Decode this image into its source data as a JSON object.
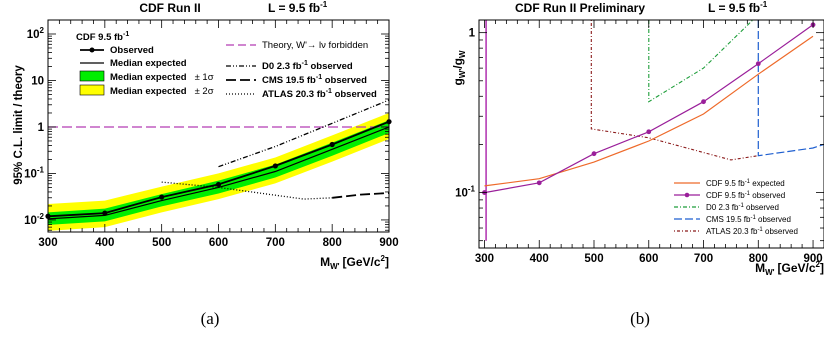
{
  "colors": {
    "theory": "#b43cb4",
    "band_1sigma": "#00ee00",
    "band_2sigma": "#ffff00",
    "cdf_expected_b": "#ee6a2a",
    "cdf_observed_b": "#9a1f9a",
    "d0": "#1e9e3a",
    "cms": "#1f5fd0",
    "atlas": "#8b1a1a"
  },
  "chart_data": [
    {
      "type": "line",
      "caption": "(a)",
      "title": "CDF Run II",
      "title_right": "L = 9.5 fb",
      "title_right_sup": "-1",
      "ylabel": "95% C.L. limit / theory",
      "xlabel_main": "M",
      "xlabel_sub": "W'",
      "xlabel_units": "[GeV/c",
      "xlabel_sup": "2",
      "xlabel_end": "]",
      "xlim": [
        300,
        900
      ],
      "ylim": [
        0.0055,
        200
      ],
      "yscale": "log",
      "x_ticks": [
        "300",
        "400",
        "500",
        "600",
        "700",
        "800",
        "900"
      ],
      "y_ticks": [
        {
          "base": "10",
          "exp": "-2",
          "value": 0.01
        },
        {
          "base": "10",
          "exp": "-1",
          "value": 0.1
        },
        {
          "base": "1",
          "exp": "",
          "value": 1
        },
        {
          "base": "10",
          "exp": "",
          "value": 10
        },
        {
          "base": "10",
          "exp": "2",
          "value": 100
        }
      ],
      "legend_left": {
        "header": "CDF 9.5 fb",
        "header_sup": "-1",
        "entries": [
          "Observed",
          "Median expected",
          "Median expected",
          "Median expected"
        ],
        "suffixes": [
          "",
          "",
          "± 1σ",
          "± 2σ"
        ]
      },
      "legend_right": {
        "entries": [
          {
            "text": "Theory, W'→ lν forbidden",
            "sup": ""
          },
          {
            "text": "D0 2.3 fb",
            "sup": "-1",
            "tail": " observed"
          },
          {
            "text": "CMS 19.5 fb",
            "sup": "-1",
            "tail": " observed"
          },
          {
            "text": "ATLAS 20.3 fb",
            "sup": "-1",
            "tail": " observed"
          }
        ]
      },
      "series": [
        {
          "name": "Observed",
          "x": [
            300,
            400,
            500,
            600,
            700,
            800,
            900
          ],
          "y": [
            0.012,
            0.014,
            0.031,
            0.058,
            0.145,
            0.42,
            1.3
          ]
        },
        {
          "name": "Median expected",
          "x": [
            300,
            400,
            500,
            600,
            700,
            800,
            900
          ],
          "y": [
            0.0105,
            0.0125,
            0.026,
            0.05,
            0.11,
            0.33,
            1.0
          ]
        },
        {
          "name": "Median expected ± 1σ",
          "x": [
            300,
            400,
            500,
            600,
            700,
            800,
            900
          ],
          "low": [
            0.0078,
            0.0093,
            0.0195,
            0.037,
            0.082,
            0.24,
            0.74
          ],
          "high": [
            0.0145,
            0.0175,
            0.036,
            0.07,
            0.155,
            0.46,
            1.4
          ]
        },
        {
          "name": "Median expected ± 2σ",
          "x": [
            300,
            400,
            500,
            600,
            700,
            800,
            900
          ],
          "low": [
            0.0058,
            0.007,
            0.0145,
            0.028,
            0.061,
            0.18,
            0.55
          ],
          "high": [
            0.022,
            0.026,
            0.052,
            0.1,
            0.22,
            0.66,
            2.0
          ]
        },
        {
          "name": "Theory, W'→ lν forbidden",
          "x": [
            300,
            900
          ],
          "y": [
            1,
            1
          ]
        },
        {
          "name": "D0 2.3 fb-1 observed",
          "x": [
            600,
            700,
            800,
            900
          ],
          "y": [
            0.14,
            0.38,
            1.2,
            3.8
          ]
        },
        {
          "name": "CMS 19.5 fb-1 observed",
          "x": [
            800,
            850,
            900
          ],
          "y": [
            0.03,
            0.035,
            0.038
          ]
        },
        {
          "name": "ATLAS 20.3 fb-1 observed",
          "x": [
            500,
            600,
            700,
            750,
            800
          ],
          "y": [
            0.065,
            0.05,
            0.034,
            0.028,
            0.03
          ]
        }
      ]
    },
    {
      "type": "line",
      "caption": "(b)",
      "title": "CDF Run II Preliminary",
      "title_right": "L = 9.5 fb",
      "title_right_sup": "-1",
      "ylabel_num": "g",
      "ylabel_num_sub": "W'",
      "ylabel_den": "g",
      "ylabel_den_sub": "W",
      "xlabel_main": "M",
      "xlabel_sub": "W'",
      "xlabel_units": "[GeV/c",
      "xlabel_sup": "2",
      "xlabel_end": "]",
      "xlim": [
        290,
        920
      ],
      "ylim": [
        0.045,
        1.2
      ],
      "yscale": "log",
      "x_ticks": [
        "300",
        "400",
        "500",
        "600",
        "700",
        "800",
        "900"
      ],
      "y_ticks": [
        {
          "label": "10",
          "exp": "-1",
          "value": 0.1
        },
        {
          "label": "1",
          "exp": "",
          "value": 1
        }
      ],
      "legend": {
        "entries": [
          {
            "text": "CDF 9.5 fb",
            "sup": "-1",
            "tail": " expected"
          },
          {
            "text": "CDF 9.5 fb",
            "sup": "-1",
            "tail": " observed"
          },
          {
            "text": "D0 2.3 fb",
            "sup": "-1",
            "tail": " observed"
          },
          {
            "text": "CMS 19.5 fb",
            "sup": "-1",
            "tail": " observed"
          },
          {
            "text": "ATLAS 20.3 fb",
            "sup": "-1",
            "tail": " observed"
          }
        ]
      },
      "series": [
        {
          "name": "CDF 9.5 fb-1 expected",
          "x": [
            300,
            400,
            500,
            600,
            700,
            800,
            900
          ],
          "y": [
            0.11,
            0.122,
            0.155,
            0.21,
            0.31,
            0.55,
            0.95
          ]
        },
        {
          "name": "CDF 9.5 fb-1 observed",
          "x": [
            300,
            400,
            500,
            600,
            700,
            800,
            900
          ],
          "y": [
            0.1,
            0.115,
            0.175,
            0.24,
            0.37,
            0.64,
            1.12
          ]
        },
        {
          "name": "D0 2.3 fb-1 observed",
          "x": [
            600,
            600,
            700,
            790
          ],
          "y": [
            1.2,
            0.37,
            0.6,
            1.2
          ]
        },
        {
          "name": "CMS 19.5 fb-1 observed",
          "x": [
            800,
            800,
            900,
            920
          ],
          "y": [
            1.2,
            0.17,
            0.19,
            0.2
          ]
        },
        {
          "name": "ATLAS 20.3 fb-1 observed",
          "x": [
            495,
            495,
            600,
            750,
            800
          ],
          "y": [
            1.2,
            0.25,
            0.22,
            0.16,
            0.17
          ]
        },
        {
          "name": "theory boundary",
          "x": [
            303,
            303
          ],
          "y": [
            0.05,
            1.2
          ]
        }
      ]
    }
  ]
}
